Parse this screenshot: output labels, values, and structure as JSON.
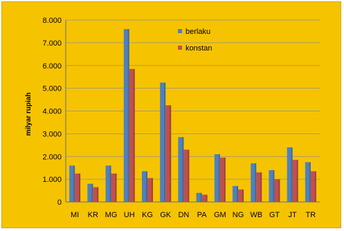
{
  "chart_data": {
    "type": "bar",
    "categories": [
      "MI",
      "KR",
      "MG",
      "UH",
      "KG",
      "GK",
      "DN",
      "PA",
      "GM",
      "NG",
      "WB",
      "GT",
      "JT",
      "TR"
    ],
    "series": [
      {
        "name": "berlaku",
        "color": "#4f81bd",
        "values": [
          1600,
          800,
          1600,
          7600,
          1350,
          5250,
          2850,
          400,
          2100,
          700,
          1700,
          1400,
          2400,
          1750
        ]
      },
      {
        "name": "konstan",
        "color": "#c0504d",
        "values": [
          1250,
          650,
          1250,
          5850,
          1050,
          4250,
          2300,
          320,
          1950,
          550,
          1300,
          1000,
          1850,
          1350
        ]
      }
    ],
    "ylabel": "milyar rupiah",
    "ylim": [
      0,
      8000
    ],
    "yticks": [
      "0",
      "1.000",
      "2.000",
      "3.000",
      "4.000",
      "5.000",
      "6.000",
      "7.000",
      "8.000"
    ],
    "grid": true,
    "legend_position": "top-center",
    "background_color": "#f6c300"
  }
}
